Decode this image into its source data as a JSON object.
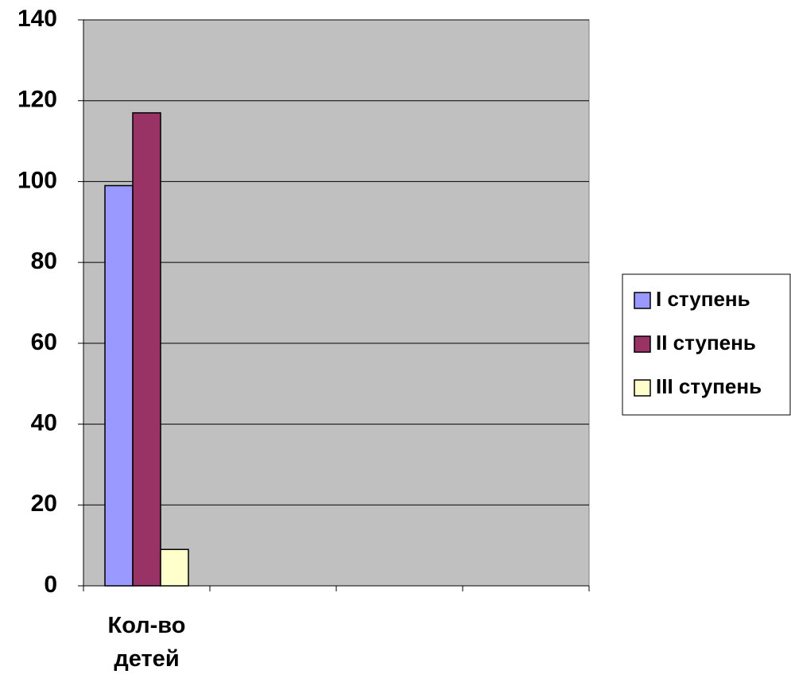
{
  "chart_data": {
    "type": "bar",
    "categories": [
      "Кол-во детей",
      null,
      null,
      null
    ],
    "series": [
      {
        "name": "I ступень",
        "color": "#9999ff",
        "values": [
          99,
          null,
          null,
          null
        ]
      },
      {
        "name": "II ступень",
        "color": "#993366",
        "values": [
          117,
          null,
          null,
          null
        ]
      },
      {
        "name": "III ступень",
        "color": "#ffffcc",
        "values": [
          9,
          null,
          null,
          null
        ]
      }
    ],
    "ylim": [
      0,
      140
    ],
    "yticks": [
      0,
      20,
      40,
      60,
      80,
      100,
      120,
      140
    ],
    "grid": true,
    "legend": "right"
  }
}
